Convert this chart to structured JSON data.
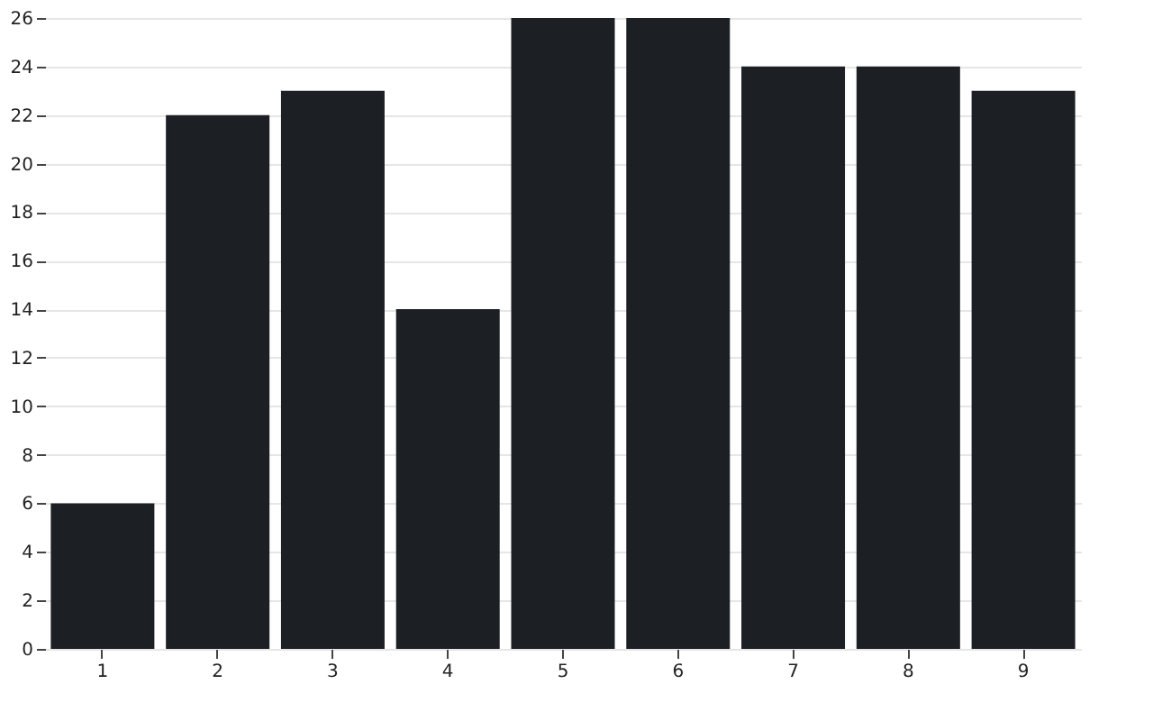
{
  "chart_data": {
    "type": "bar",
    "categories": [
      "1",
      "2",
      "3",
      "4",
      "5",
      "6",
      "7",
      "8",
      "9"
    ],
    "values": [
      6,
      22,
      23,
      14,
      26,
      26,
      24,
      24,
      23
    ],
    "color": "#1c1f24",
    "ylim": [
      0,
      26
    ],
    "yticks": [
      0,
      2,
      4,
      6,
      8,
      10,
      12,
      14,
      16,
      18,
      20,
      22,
      24,
      26
    ],
    "grid": "y"
  }
}
